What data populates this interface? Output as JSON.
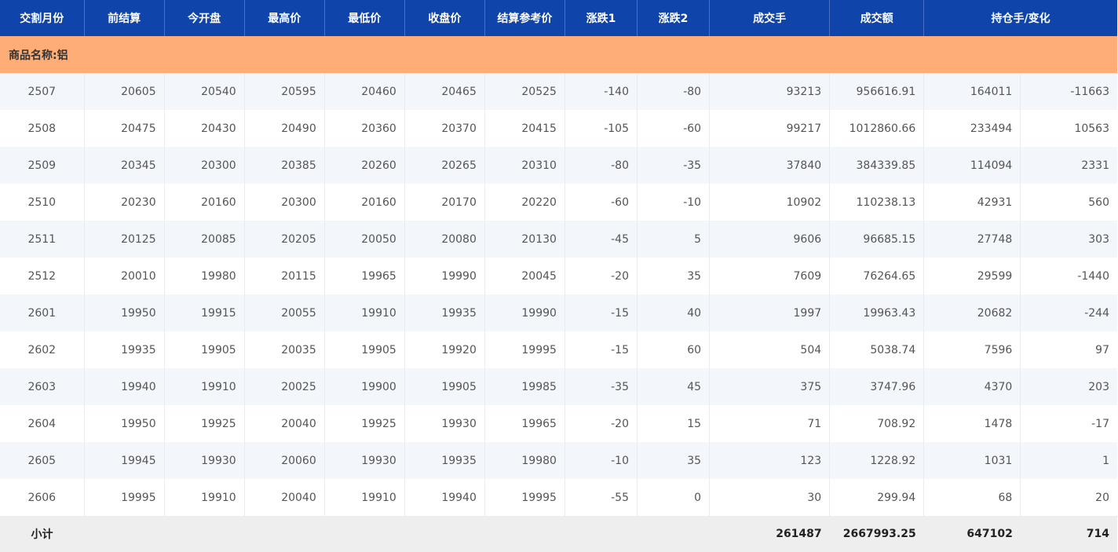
{
  "headers": [
    "交割月份",
    "前结算",
    "今开盘",
    "最高价",
    "最低价",
    "收盘价",
    "结算参考价",
    "涨跌1",
    "涨跌2",
    "成交手",
    "成交额",
    "持仓手/变化"
  ],
  "commodity_label": "商品名称:铝",
  "rows": [
    [
      "2507",
      "20605",
      "20540",
      "20595",
      "20460",
      "20465",
      "20525",
      "-140",
      "-80",
      "93213",
      "956616.91",
      "164011",
      "-11663"
    ],
    [
      "2508",
      "20475",
      "20430",
      "20490",
      "20360",
      "20370",
      "20415",
      "-105",
      "-60",
      "99217",
      "1012860.66",
      "233494",
      "10563"
    ],
    [
      "2509",
      "20345",
      "20300",
      "20385",
      "20260",
      "20265",
      "20310",
      "-80",
      "-35",
      "37840",
      "384339.85",
      "114094",
      "2331"
    ],
    [
      "2510",
      "20230",
      "20160",
      "20300",
      "20160",
      "20170",
      "20220",
      "-60",
      "-10",
      "10902",
      "110238.13",
      "42931",
      "560"
    ],
    [
      "2511",
      "20125",
      "20085",
      "20205",
      "20050",
      "20080",
      "20130",
      "-45",
      "5",
      "9606",
      "96685.15",
      "27748",
      "303"
    ],
    [
      "2512",
      "20010",
      "19980",
      "20115",
      "19965",
      "19990",
      "20045",
      "-20",
      "35",
      "7609",
      "76264.65",
      "29599",
      "-1440"
    ],
    [
      "2601",
      "19950",
      "19915",
      "20055",
      "19910",
      "19935",
      "19990",
      "-15",
      "40",
      "1997",
      "19963.43",
      "20682",
      "-244"
    ],
    [
      "2602",
      "19935",
      "19905",
      "20035",
      "19905",
      "19920",
      "19995",
      "-15",
      "60",
      "504",
      "5038.74",
      "7596",
      "97"
    ],
    [
      "2603",
      "19940",
      "19910",
      "20025",
      "19900",
      "19905",
      "19985",
      "-35",
      "45",
      "375",
      "3747.96",
      "4370",
      "203"
    ],
    [
      "2604",
      "19950",
      "19925",
      "20040",
      "19925",
      "19930",
      "19965",
      "-20",
      "15",
      "71",
      "708.92",
      "1478",
      "-17"
    ],
    [
      "2605",
      "19945",
      "19930",
      "20060",
      "19930",
      "19935",
      "19980",
      "-10",
      "35",
      "123",
      "1228.92",
      "1031",
      "1"
    ],
    [
      "2606",
      "19995",
      "19910",
      "20040",
      "19910",
      "19940",
      "19995",
      "-55",
      "0",
      "30",
      "299.94",
      "68",
      "20"
    ]
  ],
  "subtotal": {
    "label": "小计",
    "volume": "261487",
    "turnover": "2667993.25",
    "open_interest": "647102",
    "oi_change": "714"
  },
  "colors": {
    "header_bg": "#0f45ab",
    "commodity_bg": "#ffad76",
    "row_alt_bg": "#f3f6fb",
    "subtotal_bg": "#eeeeee"
  }
}
